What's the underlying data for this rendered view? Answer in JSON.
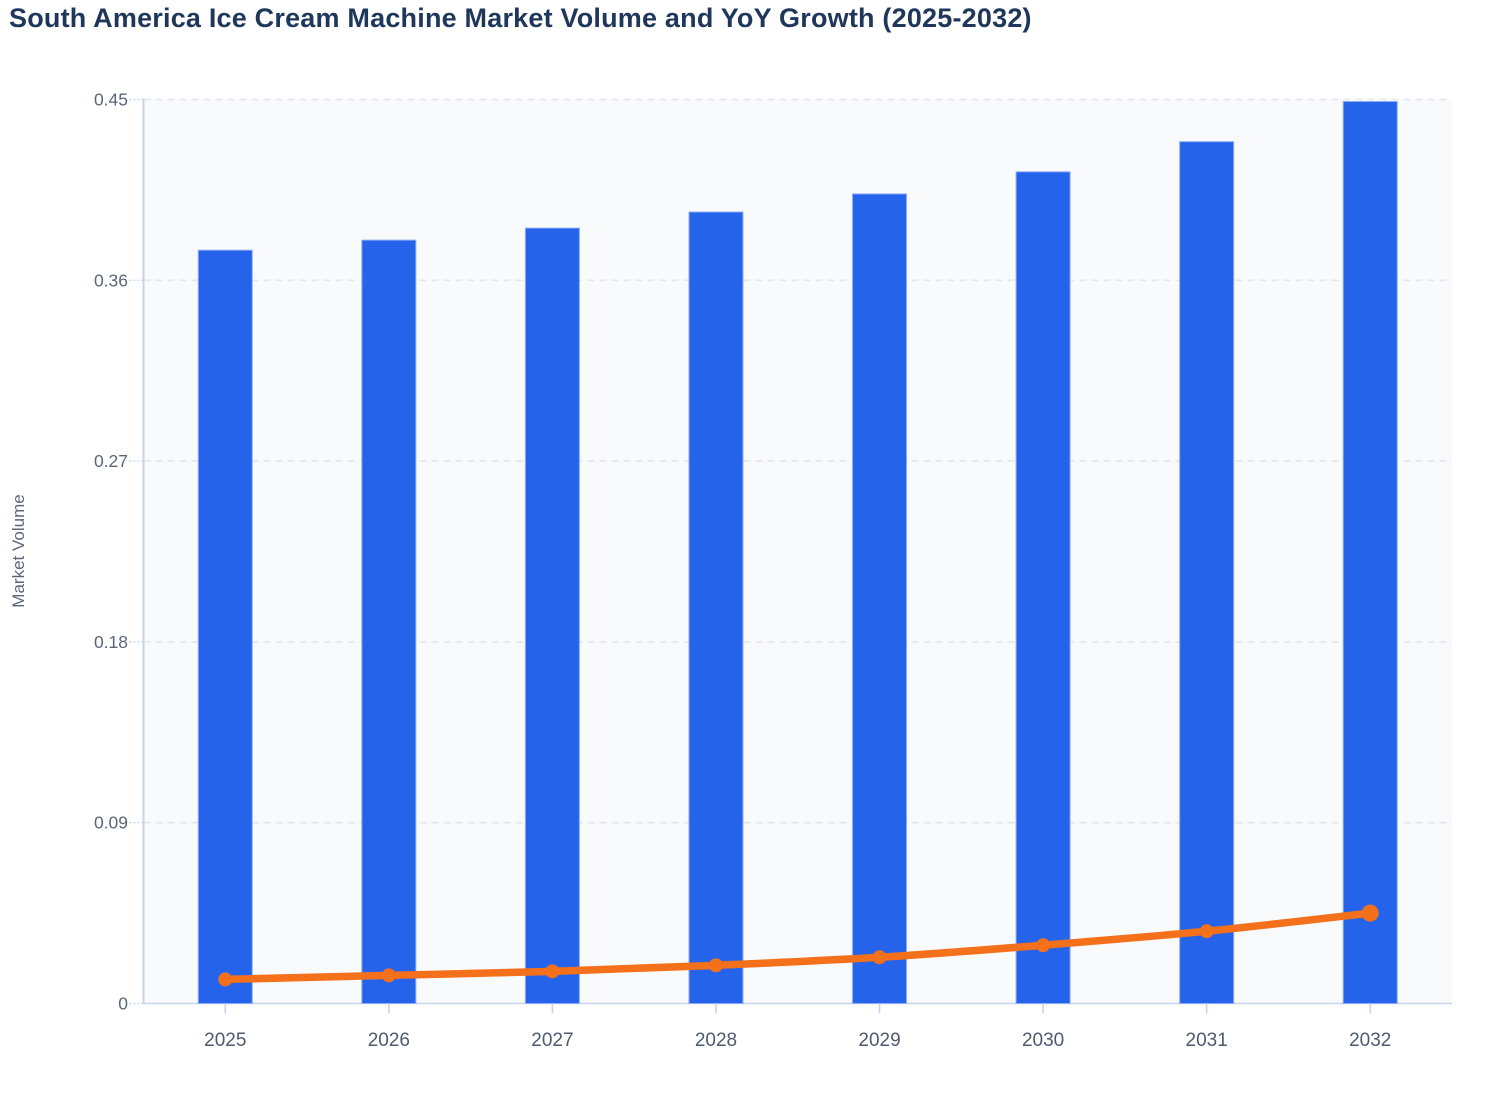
{
  "page": {
    "background": "#ffffff"
  },
  "chart_data": {
    "type": "combo-bar-line",
    "title": "South America Ice Cream Machine Market Volume and YoY Growth (2025-2032)",
    "xlabel": "",
    "ylabel": "Market Volume",
    "categories": [
      "2025",
      "2026",
      "2027",
      "2028",
      "2029",
      "2030",
      "2031",
      "2032"
    ],
    "series": [
      {
        "name": "Market Volume",
        "type": "bar",
        "color": "#2563eb",
        "values": [
          0.375,
          0.38,
          0.386,
          0.394,
          0.403,
          0.414,
          0.429,
          0.449
        ]
      },
      {
        "name": "YoY Growth",
        "type": "line",
        "color": "#f4701b",
        "values": [
          0.012,
          0.014,
          0.016,
          0.019,
          0.023,
          0.029,
          0.036,
          0.045
        ]
      }
    ],
    "y_ticks": [
      "0",
      "0.09",
      "0.18",
      "0.27",
      "0.36",
      "0.45"
    ],
    "y_tick_values": [
      0,
      0.09,
      0.18,
      0.27,
      0.36,
      0.45
    ],
    "ylim": [
      0,
      0.45
    ],
    "grid": "horizontal-dashed",
    "legend_position": "none",
    "colors": {
      "bar": "#2563eb",
      "bar_edge": "#8fadf3",
      "line": "#f4701b",
      "plot_background": "#f8fafc",
      "gridline": "#e3e7ef",
      "axis_line": "#c7d2ee",
      "tick_label": "#5b6779",
      "category_label": "#4e5a70",
      "title_color": "#20375c",
      "axis_title_color": "#5c6678"
    }
  }
}
